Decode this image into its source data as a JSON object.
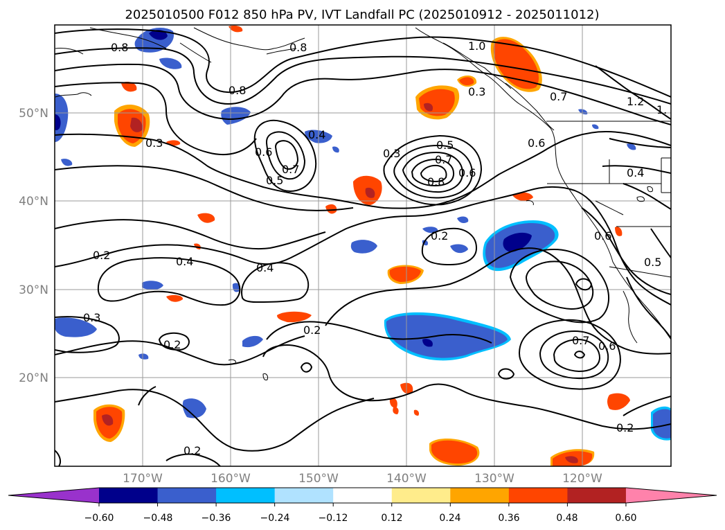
{
  "title": "2025010500 F012 850 hPa PV, IVT Landfall PC (2025010912 - 2025011012)",
  "map": {
    "lon_labels": [
      "170°W",
      "160°W",
      "150°W",
      "140°W",
      "130°W",
      "120°W"
    ],
    "lat_labels": [
      "50°N",
      "40°N",
      "30°N",
      "20°N"
    ],
    "contour_labels": [
      "0.8",
      "0.8",
      "0.8",
      "1.0",
      "0.3",
      "0.7",
      "1.2",
      "1.",
      "0.3",
      "0.6",
      "0.7",
      "0.5",
      "0.4",
      "0.3",
      "0.5",
      "0.7",
      "0.6",
      "0.8",
      "0.6",
      "0.4",
      "0.2",
      "0.4",
      "0.4",
      "0.2",
      "0.6",
      "0.5",
      "0.3",
      "0.2",
      "0.2",
      "0.7",
      "0.6",
      "0.2",
      "0.2"
    ]
  },
  "colorbar": {
    "tick_labels": [
      "−0.60",
      "−0.48",
      "−0.36",
      "−0.24",
      "−0.12",
      "0.12",
      "0.24",
      "0.36",
      "0.48",
      "0.60"
    ],
    "colors": [
      "#9932cc",
      "#00008b",
      "#3a5fcd",
      "#00bfff",
      "#b0e2ff",
      "#ffffff",
      "#ffec8b",
      "#ffa500",
      "#ff4500",
      "#b22222",
      "#ff82ab"
    ]
  }
}
